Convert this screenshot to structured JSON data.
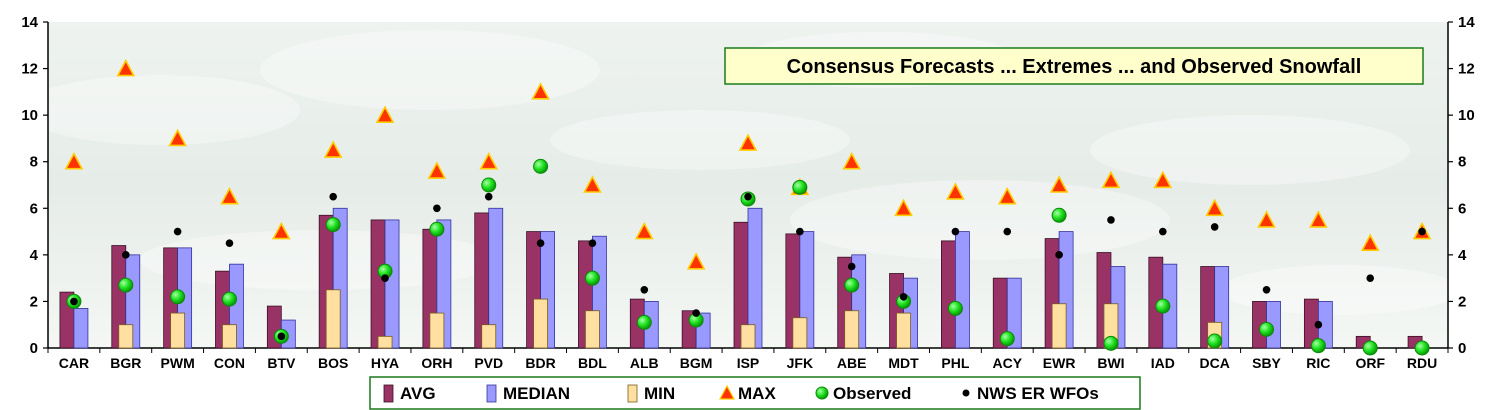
{
  "chart_data": {
    "type": "bar",
    "title": "Consensus Forecasts ... Extremes ... and Observed Snowfall",
    "ylim": [
      0,
      14
    ],
    "yticks": [
      0,
      2,
      4,
      6,
      8,
      10,
      12,
      14
    ],
    "categories": [
      "CAR",
      "BGR",
      "PWM",
      "CON",
      "BTV",
      "BOS",
      "HYA",
      "ORH",
      "PVD",
      "BDR",
      "BDL",
      "ALB",
      "BGM",
      "ISP",
      "JFK",
      "ABE",
      "MDT",
      "PHL",
      "ACY",
      "EWR",
      "BWI",
      "IAD",
      "DCA",
      "SBY",
      "RIC",
      "ORF",
      "RDU"
    ],
    "series": [
      {
        "name": "AVG",
        "kind": "bar",
        "color": "#993366",
        "values": [
          2.4,
          4.4,
          4.3,
          3.3,
          1.8,
          5.7,
          5.5,
          5.1,
          5.8,
          5.0,
          4.6,
          2.1,
          1.6,
          5.4,
          4.9,
          3.9,
          3.2,
          4.6,
          3.0,
          4.7,
          4.1,
          3.9,
          3.5,
          2.0,
          2.1,
          0.5,
          0.5
        ]
      },
      {
        "name": "MEDIAN",
        "kind": "bar",
        "color": "#9999ff",
        "values": [
          1.7,
          4.0,
          4.3,
          3.6,
          1.2,
          6.0,
          5.5,
          5.5,
          6.0,
          5.0,
          4.8,
          2.0,
          1.5,
          6.0,
          5.0,
          4.0,
          3.0,
          5.0,
          3.0,
          5.0,
          3.5,
          3.6,
          3.5,
          2.0,
          2.0,
          0.0,
          0.0
        ]
      },
      {
        "name": "MIN",
        "kind": "bar",
        "color": "#ffe0a0",
        "values": [
          0,
          1.0,
          1.5,
          1.0,
          0,
          2.5,
          0.5,
          1.5,
          1.0,
          2.1,
          1.6,
          0,
          0,
          1.0,
          1.3,
          1.6,
          1.5,
          0,
          0,
          1.9,
          1.9,
          0,
          1.1,
          0,
          0,
          0,
          0
        ]
      },
      {
        "name": "MAX",
        "kind": "triangle",
        "color": "#ff3300",
        "values": [
          8.0,
          12.0,
          9.0,
          6.5,
          5.0,
          8.5,
          10.0,
          7.6,
          8.0,
          11.0,
          7.0,
          5.0,
          3.7,
          8.8,
          6.9,
          8.0,
          6.0,
          6.7,
          6.5,
          7.0,
          7.2,
          7.2,
          6.0,
          5.5,
          5.5,
          4.5,
          5.0
        ]
      },
      {
        "name": "Observed",
        "kind": "dot",
        "color": "#00ee00",
        "values": [
          2.0,
          2.7,
          2.2,
          2.1,
          0.5,
          5.3,
          3.3,
          5.1,
          7.0,
          7.8,
          3.0,
          1.1,
          1.2,
          6.4,
          6.9,
          2.7,
          2.0,
          1.7,
          0.4,
          5.7,
          0.2,
          1.8,
          0.3,
          0.8,
          0.1,
          0.0,
          0.0
        ]
      },
      {
        "name": "NWS ER WFOs",
        "kind": "smalldot",
        "color": "#000000",
        "values": [
          2.0,
          4.0,
          5.0,
          4.5,
          0.5,
          6.5,
          3.0,
          6.0,
          6.5,
          4.5,
          4.5,
          2.5,
          1.5,
          6.5,
          5.0,
          3.5,
          2.2,
          5.0,
          5.0,
          4.0,
          5.5,
          5.0,
          5.2,
          2.5,
          1.0,
          3.0,
          5.0
        ]
      }
    ],
    "grid": false,
    "legend_position": "bottom"
  }
}
